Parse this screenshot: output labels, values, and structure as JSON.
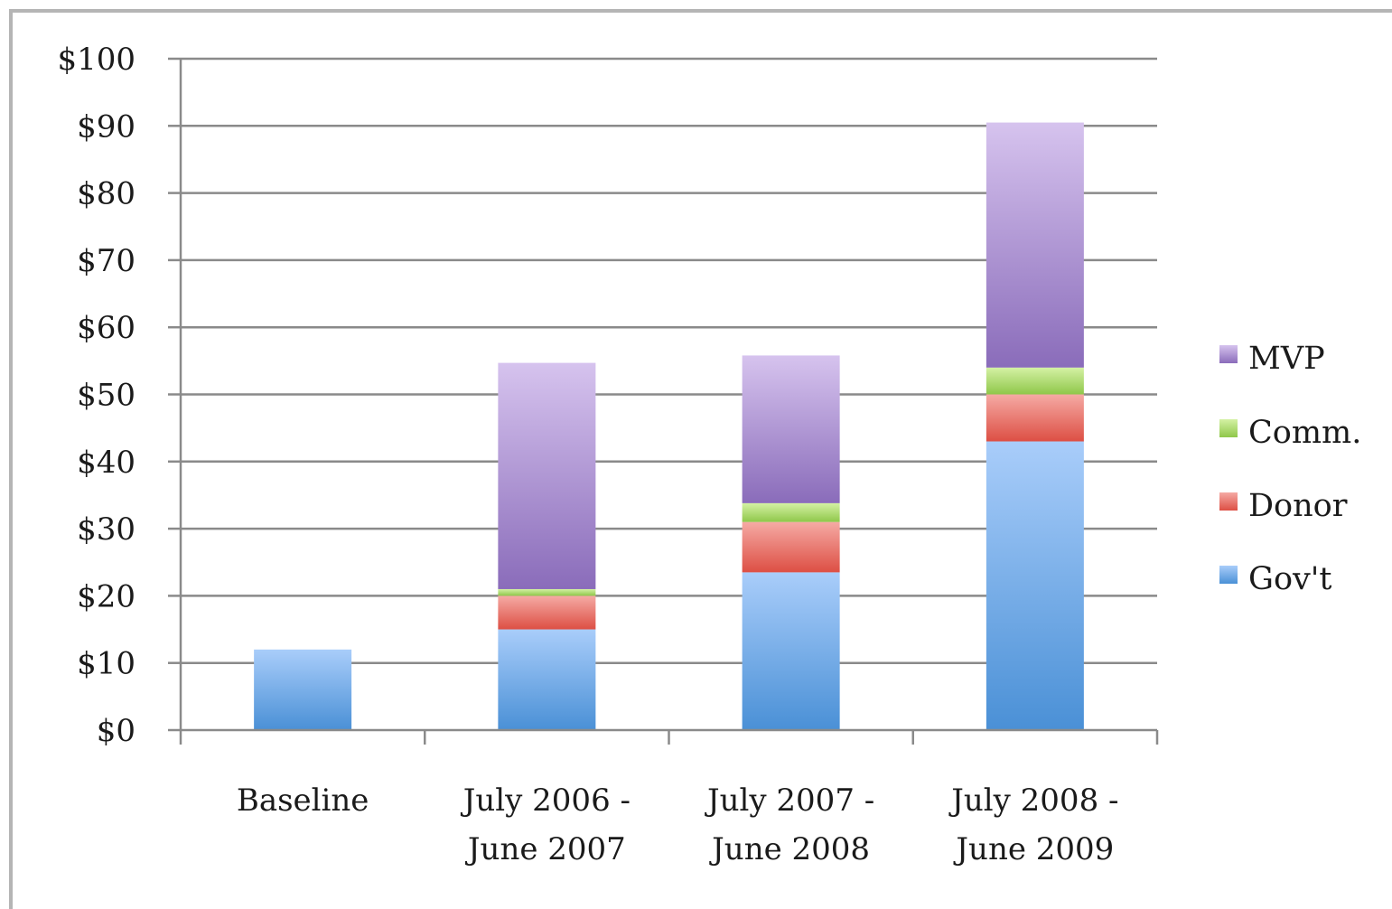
{
  "chart_data": {
    "type": "bar",
    "stacked": true,
    "title": "",
    "xlabel": "",
    "ylabel": "",
    "categories": [
      "Baseline",
      "July 2006 - June 2007",
      "July 2007 - June 2008",
      "July 2008 - June 2009"
    ],
    "category_lines": [
      [
        "Baseline"
      ],
      [
        "July 2006 -",
        "June 2007"
      ],
      [
        "July 2007 -",
        "June 2008"
      ],
      [
        "July 2008 -",
        "June 2009"
      ]
    ],
    "series": [
      {
        "name": "Gov't",
        "values": [
          12,
          15,
          23.5,
          43
        ],
        "color_top": "#a9cdfa",
        "color_bottom": "#4a90d6"
      },
      {
        "name": "Donor",
        "values": [
          0,
          5,
          7.5,
          7
        ],
        "color_top": "#f5aaa4",
        "color_bottom": "#dd4f44"
      },
      {
        "name": "Comm.",
        "values": [
          0,
          1,
          2.8,
          4
        ],
        "color_top": "#d4f1a4",
        "color_bottom": "#8fc74a"
      },
      {
        "name": "MVP",
        "values": [
          0,
          33.7,
          22,
          36.5
        ],
        "color_top": "#d6c3ee",
        "color_bottom": "#8a6cba"
      }
    ],
    "legend_order": [
      "MVP",
      "Comm.",
      "Donor",
      "Gov't"
    ],
    "y_ticks": [
      "$0",
      "$10",
      "$20",
      "$30",
      "$40",
      "$50",
      "$60",
      "$70",
      "$80",
      "$90",
      "$100"
    ],
    "ylim": [
      0,
      100
    ],
    "grid": true,
    "legend_position": "right"
  }
}
